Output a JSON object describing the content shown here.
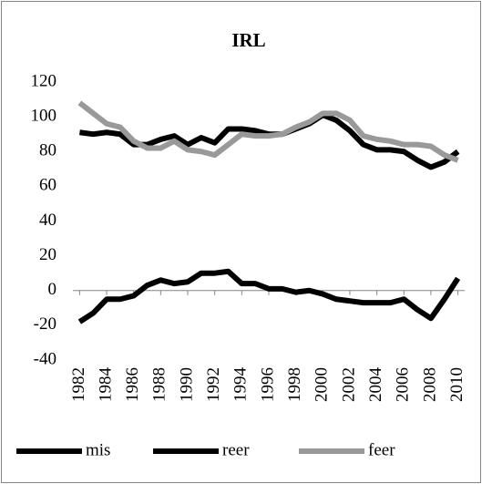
{
  "chart_data": {
    "type": "line",
    "title": "IRL",
    "x": [
      1982,
      1983,
      1984,
      1985,
      1986,
      1987,
      1988,
      1989,
      1990,
      1991,
      1992,
      1993,
      1994,
      1995,
      1996,
      1997,
      1998,
      1999,
      2000,
      2001,
      2002,
      2003,
      2004,
      2005,
      2006,
      2007,
      2008,
      2009,
      2010
    ],
    "xlim": [
      1981.5,
      2010.5
    ],
    "xticks": [
      1982,
      1984,
      1986,
      1988,
      1990,
      1992,
      1994,
      1996,
      1998,
      2000,
      2002,
      2004,
      2006,
      2008,
      2010
    ],
    "ylim": [
      -40,
      120
    ],
    "yticks": [
      -40,
      -20,
      0,
      20,
      40,
      60,
      80,
      100,
      120
    ],
    "legend": "bottom",
    "series": [
      {
        "name": "mis",
        "color": "#000000",
        "values": [
          -18,
          -13,
          -5,
          -5,
          -3,
          3,
          6,
          4,
          5,
          10,
          10,
          11,
          4,
          4,
          1,
          1,
          -1,
          0,
          -2,
          -5,
          -6,
          -7,
          -7,
          -7,
          -5,
          -11,
          -16,
          -5,
          7
        ]
      },
      {
        "name": "reer",
        "color": "#000000",
        "values": [
          91,
          90,
          91,
          90,
          84,
          84,
          87,
          89,
          84,
          88,
          85,
          93,
          93,
          92,
          90,
          90,
          93,
          96,
          101,
          98,
          92,
          84,
          81,
          81,
          80,
          75,
          71,
          74,
          80
        ]
      },
      {
        "name": "feer",
        "color": "#999999",
        "values": [
          108,
          102,
          96,
          94,
          86,
          82,
          82,
          86,
          81,
          80,
          78,
          84,
          90,
          89,
          89,
          90,
          94,
          97,
          102,
          102,
          98,
          89,
          87,
          86,
          84,
          84,
          83,
          78,
          75
        ]
      }
    ]
  }
}
